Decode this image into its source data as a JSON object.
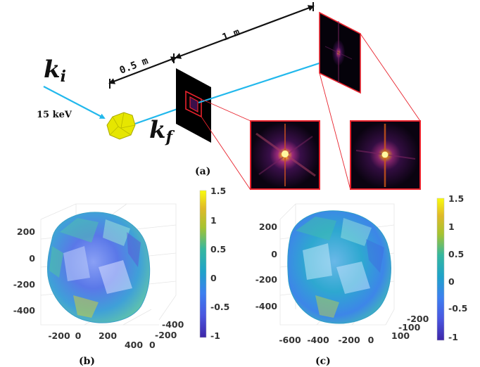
{
  "panel_a": {
    "distance_1": "0.5  m",
    "distance_2": "1  m",
    "energy": "15  keV",
    "k_incident": "k",
    "k_incident_sub": "i",
    "k_final": "k",
    "k_final_sub": "f",
    "caption": "(a)"
  },
  "panel_b": {
    "caption": "(b)",
    "y_ticks": [
      "200",
      "0",
      "-200",
      "-400"
    ],
    "x_ticks": [
      "-200",
      "0",
      "200",
      "400"
    ],
    "z_ticks": [
      "-400",
      "-200",
      "0"
    ]
  },
  "panel_c": {
    "caption": "(c)",
    "y_ticks": [
      "200",
      "0",
      "-200",
      "-400"
    ],
    "x_ticks": [
      "-600",
      "-400",
      "-200",
      "0"
    ],
    "z_ticks": [
      "-200",
      "-100",
      "100"
    ]
  },
  "colorbar": {
    "ticks": [
      "1.5",
      "1",
      "0.5",
      "0",
      "-0.5",
      "-1"
    ],
    "colors": [
      "#f9fb0e",
      "#e0ba28",
      "#a6c330",
      "#35b79f",
      "#1fa3c9",
      "#3d7ff0",
      "#4a56e0",
      "#3e26a8"
    ]
  },
  "colors": {
    "beam": "#22b8ec",
    "frame": "#e8222c",
    "crystal": "#e6e600"
  }
}
